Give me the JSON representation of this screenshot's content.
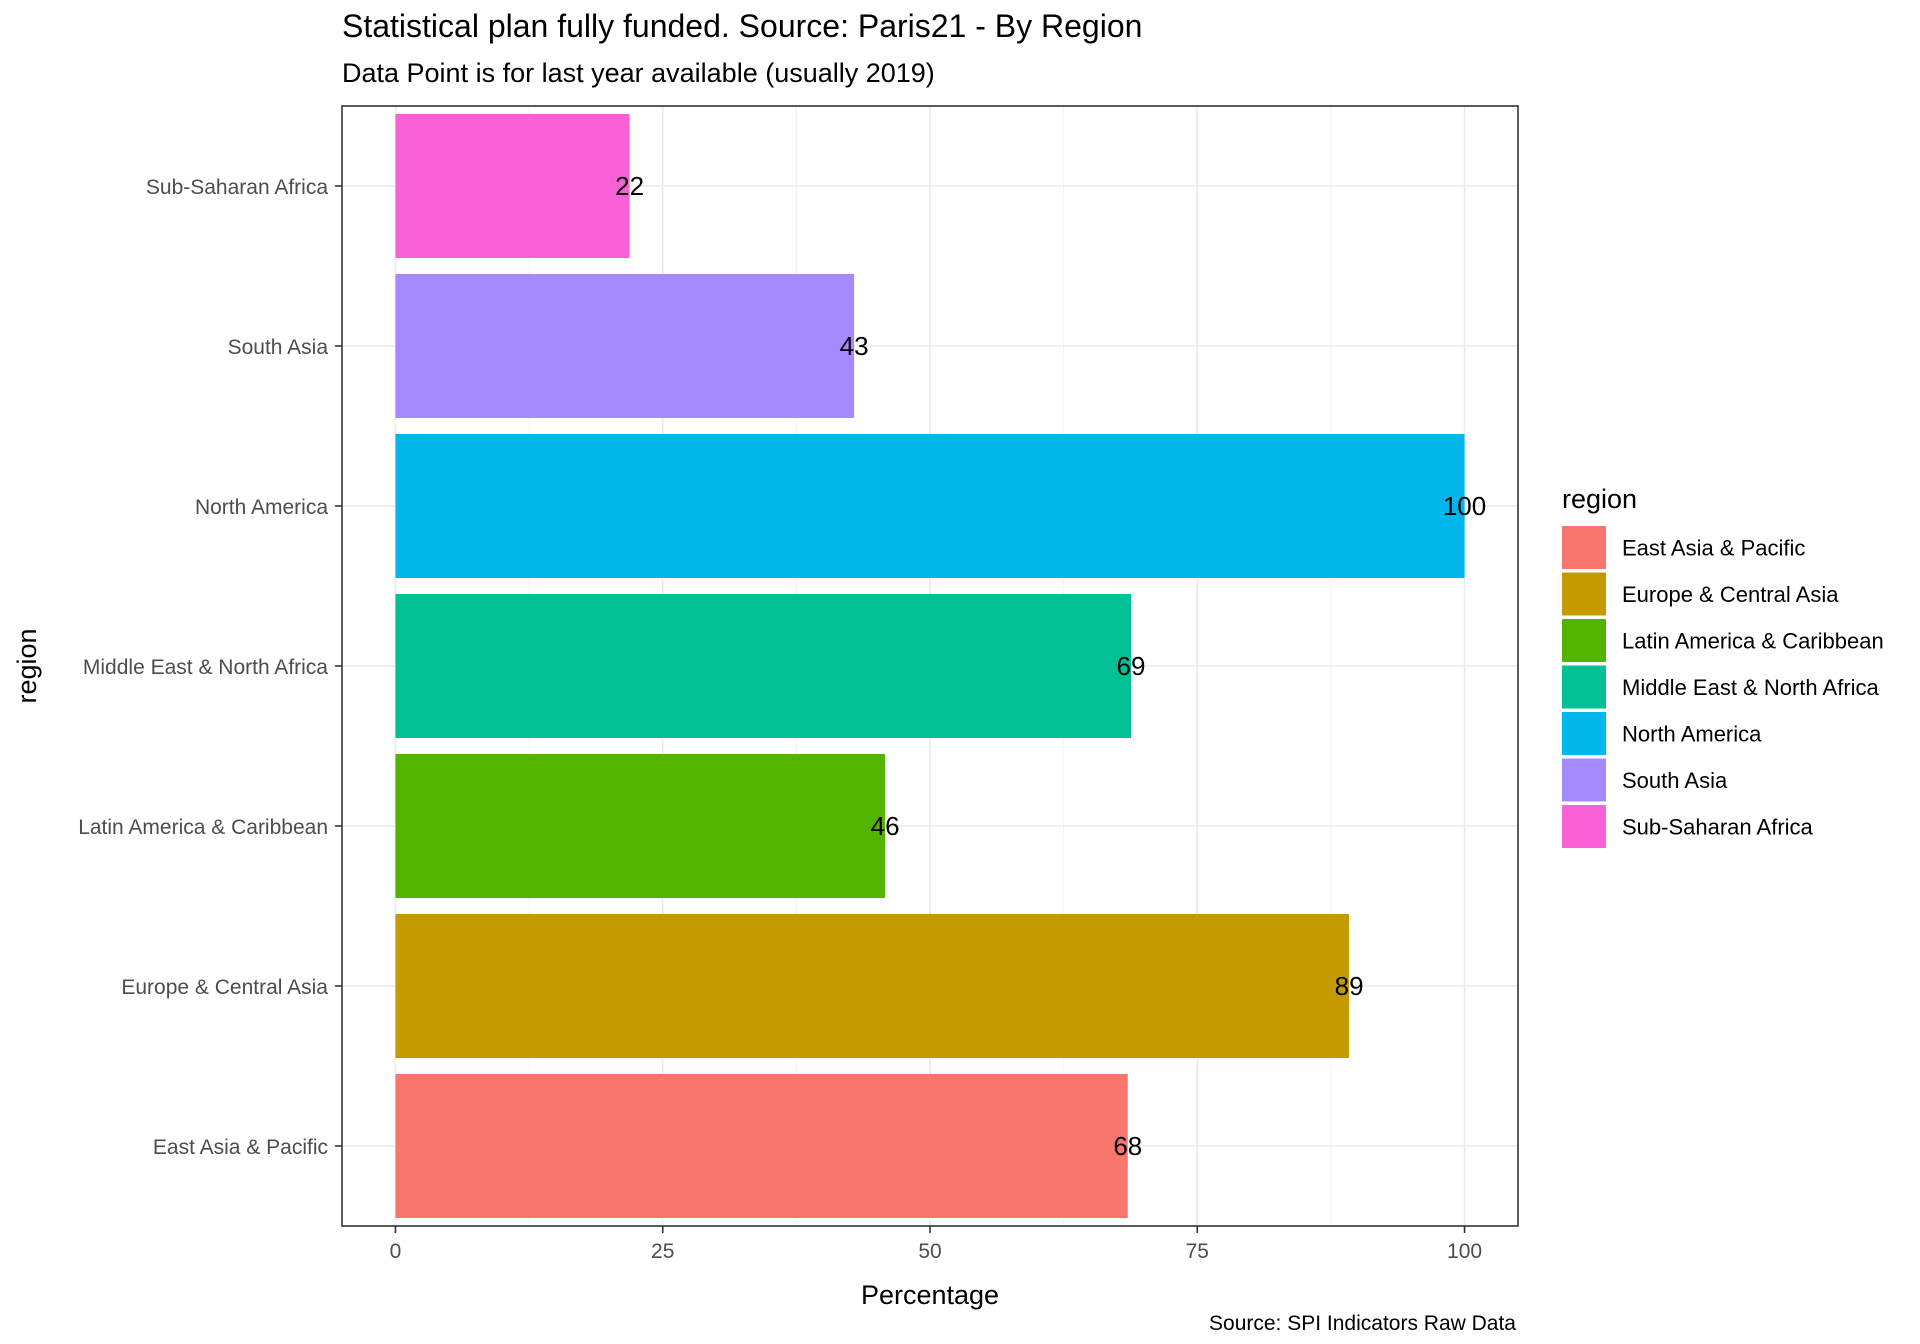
{
  "title": "Statistical plan fully funded. Source: Paris21 - By Region",
  "subtitle": "Data Point is for last year available (usually 2019)",
  "caption": "Source: SPI Indicators Raw Data",
  "chart_data": {
    "type": "bar",
    "orientation": "horizontal",
    "categories": [
      "East Asia & Pacific",
      "Europe & Central Asia",
      "Latin America & Caribbean",
      "Middle East & North Africa",
      "North America",
      "South Asia",
      "Sub-Saharan Africa"
    ],
    "values": [
      68.5,
      89.2,
      45.8,
      68.8,
      100,
      42.9,
      21.9
    ],
    "value_labels": [
      "68",
      "89",
      "46",
      "69",
      "100",
      "43",
      "22"
    ],
    "colors": [
      "#F8766D",
      "#C49A00",
      "#53B400",
      "#00C094",
      "#00B6EB",
      "#A58AFF",
      "#FB61D7"
    ],
    "xlabel": "Percentage",
    "ylabel": "region",
    "xlim": [
      -5,
      105
    ],
    "xticks": [
      0,
      25,
      50,
      75,
      100
    ],
    "grid": true,
    "legend": {
      "title": "region",
      "position": "right",
      "items": [
        "East Asia & Pacific",
        "Europe & Central Asia",
        "Latin America & Caribbean",
        "Middle East & North Africa",
        "North America",
        "South Asia",
        "Sub-Saharan Africa"
      ]
    }
  }
}
